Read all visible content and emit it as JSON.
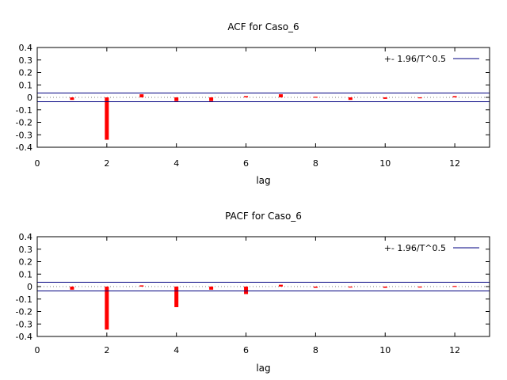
{
  "chart_data": [
    {
      "id": "acf",
      "type": "bar",
      "title": "ACF for Caso_6",
      "xlabel": "lag",
      "ylabel": "",
      "xlim": [
        0,
        13
      ],
      "ylim": [
        -0.4,
        0.4
      ],
      "xticks": [
        0,
        2,
        4,
        6,
        8,
        10,
        12
      ],
      "yticks": [
        -0.4,
        -0.3,
        -0.2,
        -0.1,
        0,
        0.1,
        0.2,
        0.3,
        0.4
      ],
      "ytick_labels": [
        "-0.4",
        "-0.3",
        "-0.2",
        "-0.1",
        "0",
        "0.1",
        "0.2",
        "0.3",
        "0.4"
      ],
      "lags": [
        1,
        2,
        3,
        4,
        5,
        6,
        7,
        8,
        9,
        10,
        11,
        12
      ],
      "values": [
        -0.02,
        -0.34,
        0.025,
        -0.03,
        -0.03,
        0.01,
        0.025,
        0.005,
        -0.02,
        -0.012,
        0.0,
        0.01
      ],
      "confidence_band": 0.035,
      "legend": "+- 1.96/T^0.5",
      "bar_color": "#ff0000",
      "band_color": "#000080"
    },
    {
      "id": "pacf",
      "type": "bar",
      "title": "PACF for Caso_6",
      "xlabel": "lag",
      "ylabel": "",
      "xlim": [
        0,
        13
      ],
      "ylim": [
        -0.4,
        0.4
      ],
      "xticks": [
        0,
        2,
        4,
        6,
        8,
        10,
        12
      ],
      "yticks": [
        -0.4,
        -0.3,
        -0.2,
        -0.1,
        0,
        0.1,
        0.2,
        0.3,
        0.4
      ],
      "ytick_labels": [
        "-0.4",
        "-0.3",
        "-0.2",
        "-0.1",
        "0",
        "0.1",
        "0.2",
        "0.3",
        "0.4"
      ],
      "lags": [
        1,
        2,
        3,
        4,
        5,
        6,
        7,
        8,
        9,
        10,
        11,
        12
      ],
      "values": [
        -0.025,
        -0.345,
        0.01,
        -0.165,
        -0.025,
        -0.06,
        0.015,
        -0.01,
        -0.005,
        -0.01,
        -0.005,
        0.005
      ],
      "confidence_band": 0.035,
      "legend": "+- 1.96/T^0.5",
      "bar_color": "#ff0000",
      "band_color": "#000080"
    }
  ]
}
